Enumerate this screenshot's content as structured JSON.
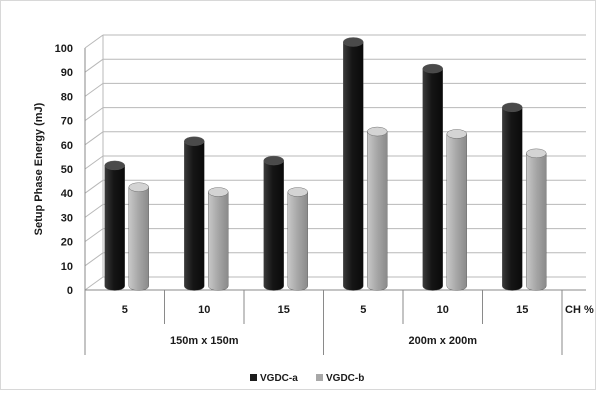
{
  "chart_data": {
    "type": "bar",
    "title": "",
    "ylabel": "Setup Phase Energy (mJ)",
    "xlabel": "CH %",
    "ylim": [
      0,
      100
    ],
    "yticks": [
      0,
      10,
      20,
      30,
      40,
      50,
      60,
      70,
      80,
      90,
      100
    ],
    "groups": [
      {
        "label": "150m x 150m",
        "categories": [
          "5",
          "10",
          "15"
        ]
      },
      {
        "label": "200m x 200m",
        "categories": [
          "5",
          "10",
          "15"
        ]
      }
    ],
    "categories": [
      "5",
      "10",
      "15",
      "5",
      "10",
      "15"
    ],
    "series": [
      {
        "name": "VGDC-a",
        "color": "#1c1c1c",
        "values": [
          49,
          59,
          51,
          100,
          89,
          73
        ]
      },
      {
        "name": "VGDC-b",
        "color": "#a8a8a8",
        "values": [
          40,
          38,
          38,
          63,
          62,
          54
        ]
      }
    ],
    "grid": true,
    "legend_position": "bottom-center"
  }
}
